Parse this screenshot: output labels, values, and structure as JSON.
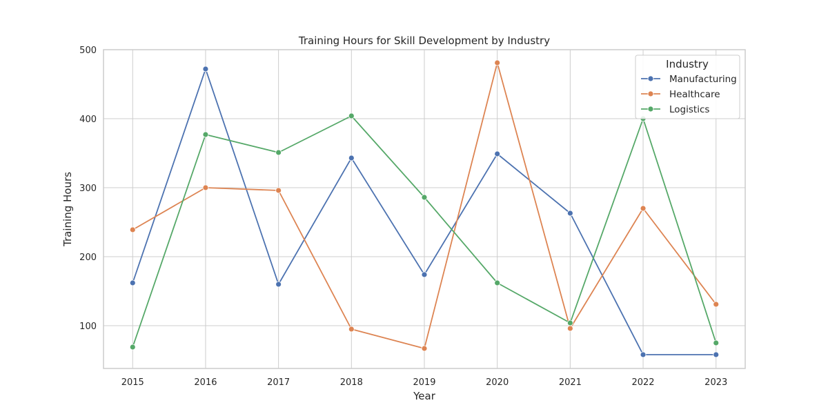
{
  "chart_data": {
    "type": "line",
    "title": "Training Hours for Skill Development by Industry",
    "xlabel": "Year",
    "ylabel": "Training Hours",
    "x": [
      2015,
      2016,
      2017,
      2018,
      2019,
      2020,
      2021,
      2022,
      2023
    ],
    "xlim": [
      2014.6,
      2023.4
    ],
    "ylim": [
      38,
      500
    ],
    "yticks": [
      100,
      200,
      300,
      400,
      500
    ],
    "grid": true,
    "legend": {
      "title": "Industry",
      "placement": "top-right"
    },
    "series": [
      {
        "name": "Manufacturing",
        "color": "#4c72b0",
        "values": [
          162,
          472,
          160,
          343,
          174,
          349,
          263,
          58,
          58
        ]
      },
      {
        "name": "Healthcare",
        "color": "#dd8452",
        "values": [
          239,
          300,
          296,
          95,
          67,
          481,
          96,
          270,
          131
        ]
      },
      {
        "name": "Logistics",
        "color": "#55a868",
        "values": [
          69,
          377,
          351,
          404,
          286,
          162,
          104,
          400,
          75
        ]
      }
    ]
  }
}
